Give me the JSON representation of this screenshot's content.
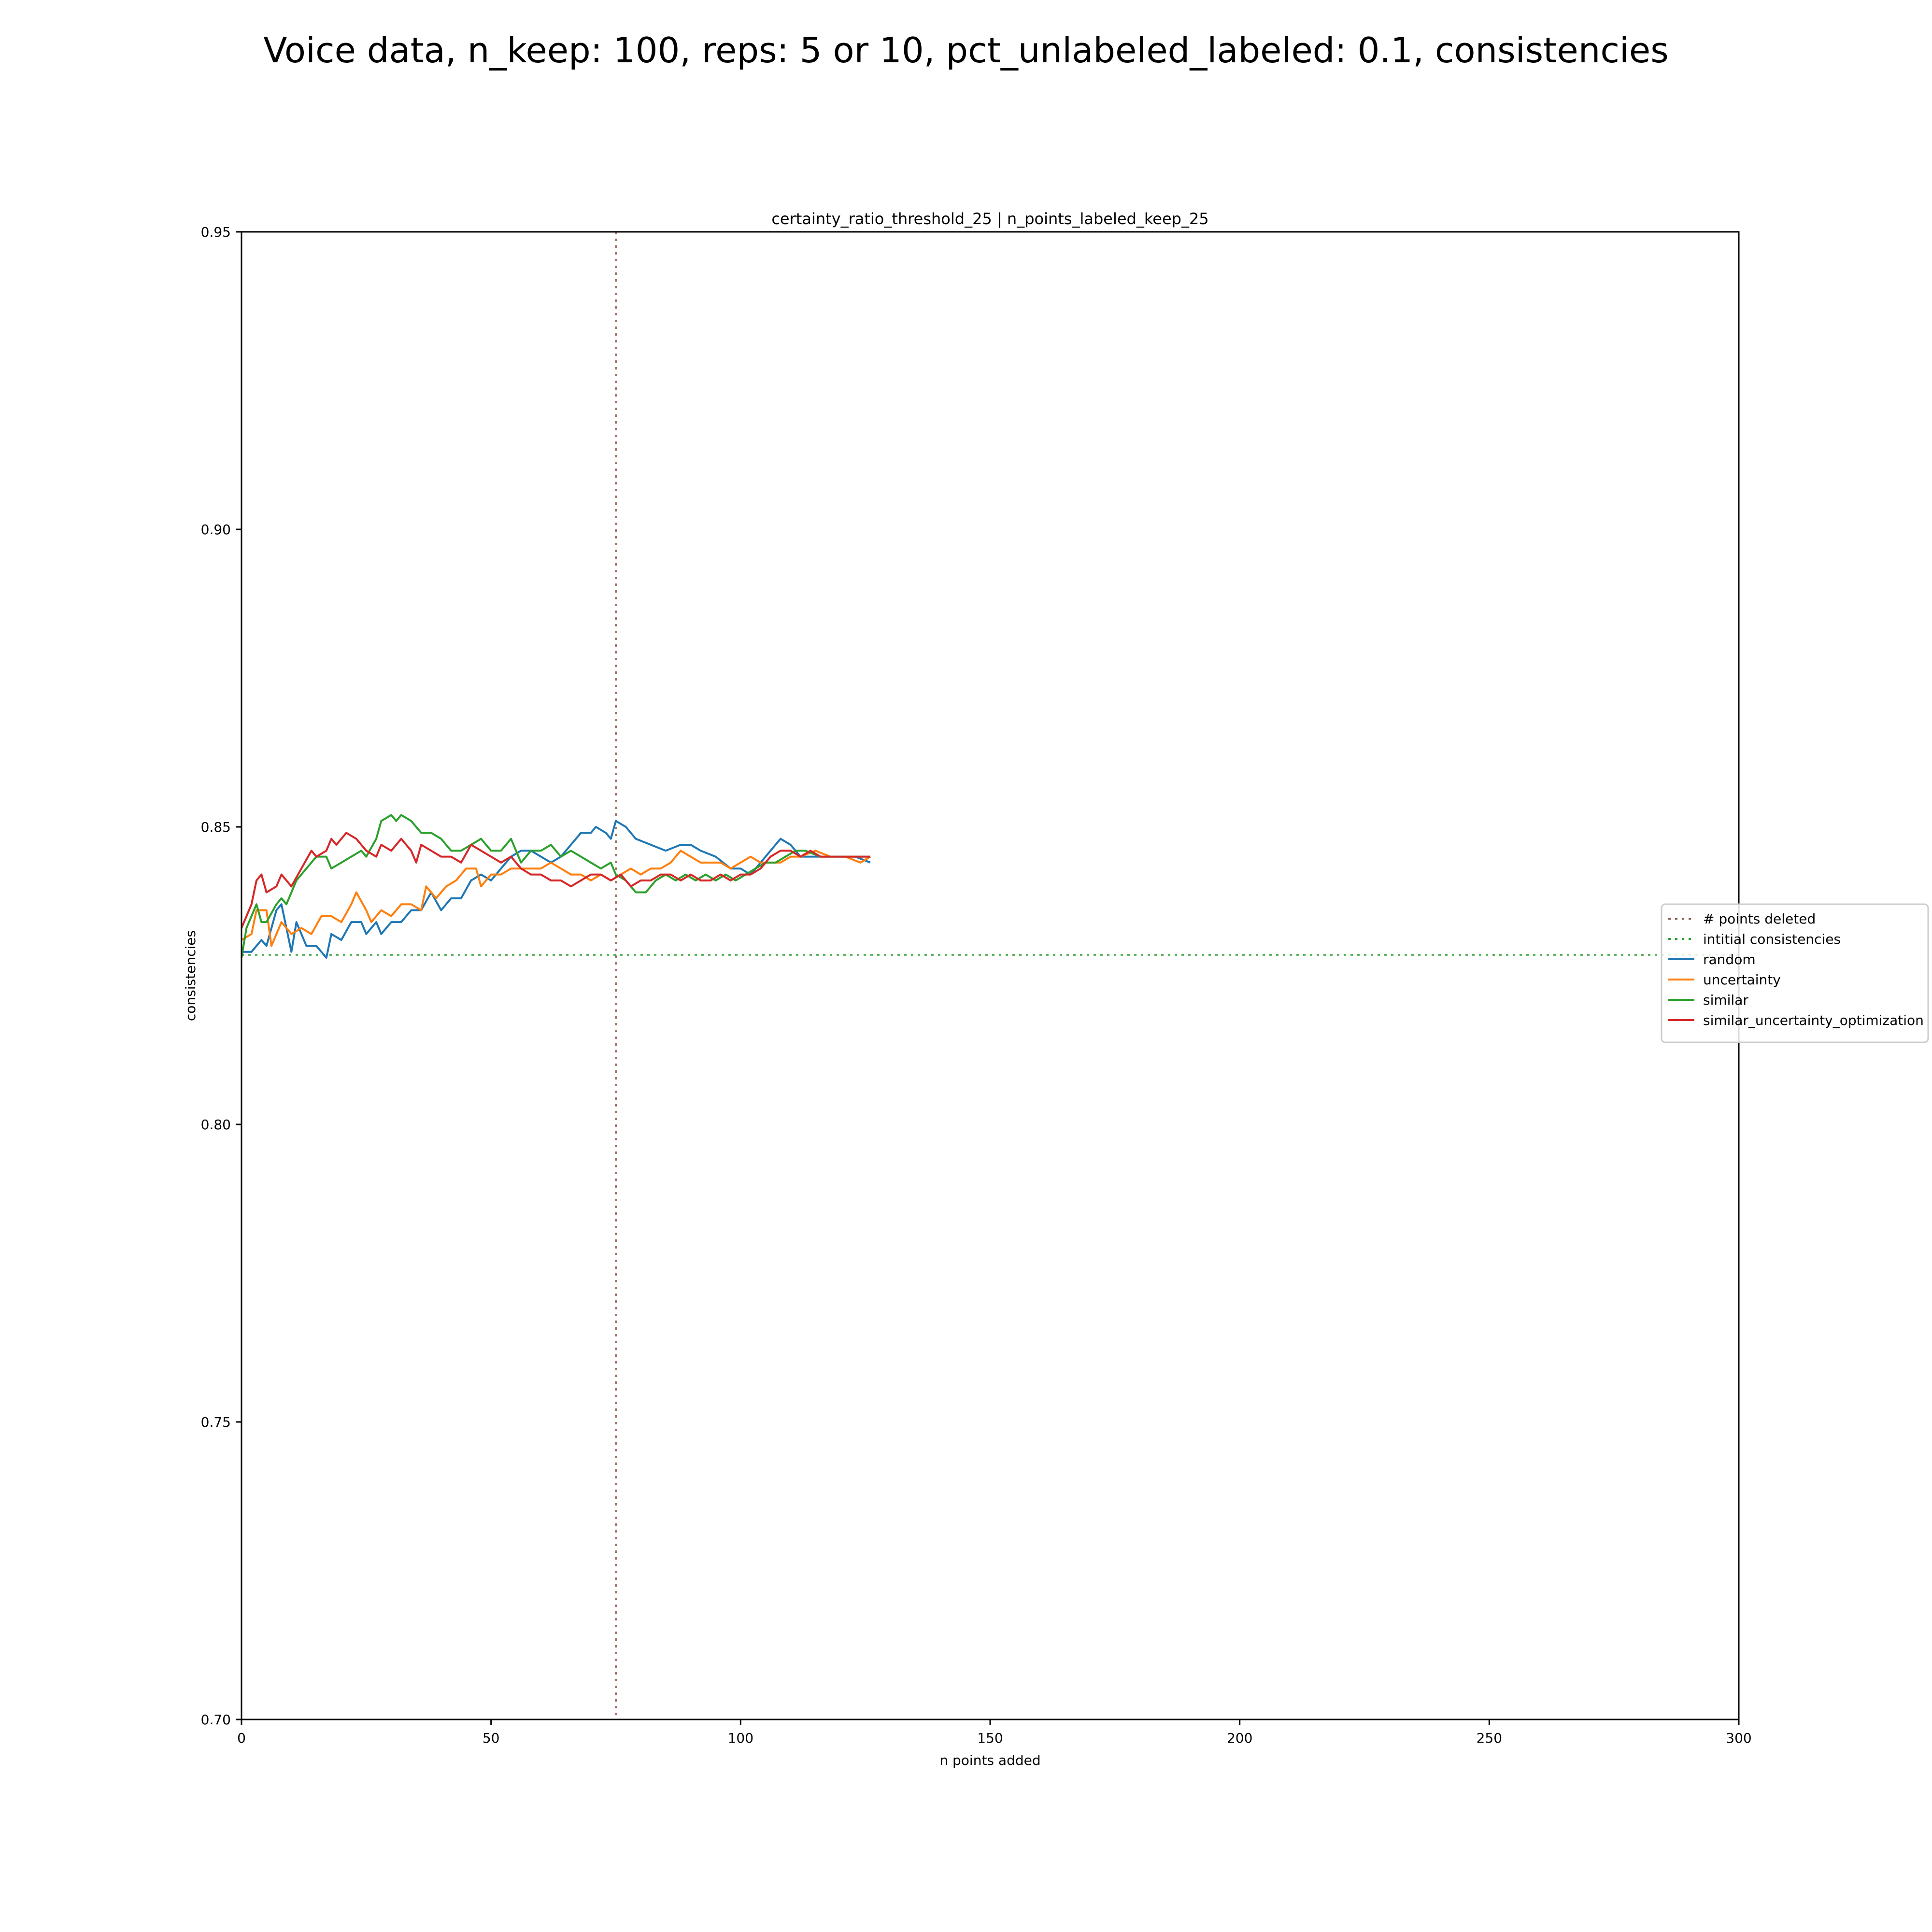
{
  "figure": {
    "suptitle": "Voice data, n_keep: 100, reps: 5 or 10, pct_unlabeled_labeled: 0.1, consistencies"
  },
  "chart_data": {
    "type": "line",
    "title": "certainty_ratio_threshold_25 | n_points_labeled_keep_25",
    "xlabel": "n points added",
    "ylabel": "consistencies",
    "xlim": [
      0,
      300
    ],
    "ylim": [
      0.7,
      0.95
    ],
    "xticks": [
      0,
      50,
      100,
      150,
      200,
      250,
      300
    ],
    "xtick_labels": [
      "0",
      "50",
      "100",
      "150",
      "200",
      "250",
      "300"
    ],
    "yticks": [
      0.7,
      0.75,
      0.8,
      0.85,
      0.9,
      0.95
    ],
    "ytick_labels": [
      "0.70",
      "0.75",
      "0.80",
      "0.85",
      "0.90",
      "0.95"
    ],
    "grid": false,
    "legend_position": "center-right, outside",
    "reference_lines": [
      {
        "name": "# points deleted",
        "orientation": "vertical",
        "x": 75,
        "color": "#8c564b",
        "style": "dotted"
      },
      {
        "name": "intitial consistencies",
        "orientation": "horizontal",
        "y": 0.8285,
        "color": "#2ca02c",
        "style": "dotted"
      }
    ],
    "series": [
      {
        "name": "random",
        "color": "#1f77b4",
        "points": [
          [
            0,
            0.829
          ],
          [
            2,
            0.829
          ],
          [
            4,
            0.831
          ],
          [
            5,
            0.83
          ],
          [
            7,
            0.836
          ],
          [
            8,
            0.837
          ],
          [
            10,
            0.829
          ],
          [
            11,
            0.834
          ],
          [
            13,
            0.83
          ],
          [
            15,
            0.83
          ],
          [
            17,
            0.828
          ],
          [
            18,
            0.832
          ],
          [
            20,
            0.831
          ],
          [
            22,
            0.834
          ],
          [
            24,
            0.834
          ],
          [
            25,
            0.832
          ],
          [
            27,
            0.834
          ],
          [
            28,
            0.832
          ],
          [
            30,
            0.834
          ],
          [
            32,
            0.834
          ],
          [
            34,
            0.836
          ],
          [
            36,
            0.836
          ],
          [
            38,
            0.839
          ],
          [
            40,
            0.836
          ],
          [
            42,
            0.838
          ],
          [
            44,
            0.838
          ],
          [
            46,
            0.841
          ],
          [
            48,
            0.842
          ],
          [
            50,
            0.841
          ],
          [
            52,
            0.843
          ],
          [
            54,
            0.845
          ],
          [
            56,
            0.846
          ],
          [
            58,
            0.846
          ],
          [
            60,
            0.845
          ],
          [
            62,
            0.844
          ],
          [
            64,
            0.845
          ],
          [
            66,
            0.847
          ],
          [
            68,
            0.849
          ],
          [
            70,
            0.849
          ],
          [
            71,
            0.85
          ],
          [
            73,
            0.849
          ],
          [
            74,
            0.848
          ],
          [
            75,
            0.851
          ],
          [
            77,
            0.85
          ],
          [
            79,
            0.848
          ],
          [
            82,
            0.847
          ],
          [
            85,
            0.846
          ],
          [
            88,
            0.847
          ],
          [
            90,
            0.847
          ],
          [
            92,
            0.846
          ],
          [
            95,
            0.845
          ],
          [
            98,
            0.843
          ],
          [
            100,
            0.843
          ],
          [
            102,
            0.842
          ],
          [
            104,
            0.844
          ],
          [
            106,
            0.846
          ],
          [
            108,
            0.848
          ],
          [
            110,
            0.847
          ],
          [
            112,
            0.845
          ],
          [
            115,
            0.845
          ],
          [
            118,
            0.845
          ],
          [
            120,
            0.845
          ],
          [
            123,
            0.845
          ],
          [
            126,
            0.844
          ]
        ]
      },
      {
        "name": "uncertainty",
        "color": "#ff7f0e",
        "points": [
          [
            0,
            0.831
          ],
          [
            2,
            0.832
          ],
          [
            3,
            0.836
          ],
          [
            5,
            0.836
          ],
          [
            6,
            0.83
          ],
          [
            8,
            0.834
          ],
          [
            10,
            0.832
          ],
          [
            12,
            0.833
          ],
          [
            14,
            0.832
          ],
          [
            16,
            0.835
          ],
          [
            18,
            0.835
          ],
          [
            20,
            0.834
          ],
          [
            22,
            0.837
          ],
          [
            23,
            0.839
          ],
          [
            25,
            0.836
          ],
          [
            26,
            0.834
          ],
          [
            28,
            0.836
          ],
          [
            30,
            0.835
          ],
          [
            32,
            0.837
          ],
          [
            34,
            0.837
          ],
          [
            36,
            0.836
          ],
          [
            37,
            0.84
          ],
          [
            39,
            0.838
          ],
          [
            41,
            0.84
          ],
          [
            43,
            0.841
          ],
          [
            45,
            0.843
          ],
          [
            47,
            0.843
          ],
          [
            48,
            0.84
          ],
          [
            50,
            0.842
          ],
          [
            52,
            0.842
          ],
          [
            54,
            0.843
          ],
          [
            56,
            0.843
          ],
          [
            58,
            0.843
          ],
          [
            60,
            0.843
          ],
          [
            62,
            0.844
          ],
          [
            64,
            0.843
          ],
          [
            66,
            0.842
          ],
          [
            68,
            0.842
          ],
          [
            70,
            0.841
          ],
          [
            72,
            0.842
          ],
          [
            74,
            0.841
          ],
          [
            76,
            0.842
          ],
          [
            78,
            0.843
          ],
          [
            80,
            0.842
          ],
          [
            82,
            0.843
          ],
          [
            84,
            0.843
          ],
          [
            86,
            0.844
          ],
          [
            88,
            0.846
          ],
          [
            90,
            0.845
          ],
          [
            92,
            0.844
          ],
          [
            94,
            0.844
          ],
          [
            96,
            0.844
          ],
          [
            98,
            0.843
          ],
          [
            100,
            0.844
          ],
          [
            102,
            0.845
          ],
          [
            104,
            0.844
          ],
          [
            106,
            0.844
          ],
          [
            108,
            0.844
          ],
          [
            110,
            0.845
          ],
          [
            112,
            0.845
          ],
          [
            115,
            0.846
          ],
          [
            118,
            0.845
          ],
          [
            121,
            0.845
          ],
          [
            124,
            0.844
          ],
          [
            126,
            0.845
          ]
        ]
      },
      {
        "name": "similar",
        "color": "#2ca02c",
        "points": [
          [
            0,
            0.828
          ],
          [
            1,
            0.833
          ],
          [
            3,
            0.837
          ],
          [
            4,
            0.834
          ],
          [
            5,
            0.834
          ],
          [
            7,
            0.837
          ],
          [
            8,
            0.838
          ],
          [
            9,
            0.837
          ],
          [
            11,
            0.841
          ],
          [
            13,
            0.843
          ],
          [
            15,
            0.845
          ],
          [
            17,
            0.845
          ],
          [
            18,
            0.843
          ],
          [
            20,
            0.844
          ],
          [
            22,
            0.845
          ],
          [
            24,
            0.846
          ],
          [
            25,
            0.845
          ],
          [
            27,
            0.848
          ],
          [
            28,
            0.851
          ],
          [
            30,
            0.852
          ],
          [
            31,
            0.851
          ],
          [
            32,
            0.852
          ],
          [
            34,
            0.851
          ],
          [
            36,
            0.849
          ],
          [
            38,
            0.849
          ],
          [
            40,
            0.848
          ],
          [
            42,
            0.846
          ],
          [
            44,
            0.846
          ],
          [
            46,
            0.847
          ],
          [
            48,
            0.848
          ],
          [
            50,
            0.846
          ],
          [
            52,
            0.846
          ],
          [
            54,
            0.848
          ],
          [
            56,
            0.844
          ],
          [
            58,
            0.846
          ],
          [
            60,
            0.846
          ],
          [
            62,
            0.847
          ],
          [
            64,
            0.845
          ],
          [
            66,
            0.846
          ],
          [
            68,
            0.845
          ],
          [
            70,
            0.844
          ],
          [
            72,
            0.843
          ],
          [
            74,
            0.844
          ],
          [
            75,
            0.842
          ],
          [
            77,
            0.841
          ],
          [
            79,
            0.839
          ],
          [
            81,
            0.839
          ],
          [
            83,
            0.841
          ],
          [
            85,
            0.842
          ],
          [
            87,
            0.841
          ],
          [
            89,
            0.842
          ],
          [
            91,
            0.841
          ],
          [
            93,
            0.842
          ],
          [
            95,
            0.841
          ],
          [
            97,
            0.842
          ],
          [
            99,
            0.841
          ],
          [
            101,
            0.842
          ],
          [
            103,
            0.843
          ],
          [
            105,
            0.844
          ],
          [
            107,
            0.844
          ],
          [
            109,
            0.845
          ],
          [
            111,
            0.846
          ],
          [
            113,
            0.846
          ],
          [
            116,
            0.845
          ],
          [
            119,
            0.845
          ],
          [
            122,
            0.845
          ],
          [
            126,
            0.845
          ]
        ]
      },
      {
        "name": "similar_uncertainty_optimization",
        "color": "#d62728",
        "points": [
          [
            0,
            0.833
          ],
          [
            2,
            0.837
          ],
          [
            3,
            0.841
          ],
          [
            4,
            0.842
          ],
          [
            5,
            0.839
          ],
          [
            7,
            0.84
          ],
          [
            8,
            0.842
          ],
          [
            10,
            0.84
          ],
          [
            12,
            0.843
          ],
          [
            14,
            0.846
          ],
          [
            15,
            0.845
          ],
          [
            17,
            0.846
          ],
          [
            18,
            0.848
          ],
          [
            19,
            0.847
          ],
          [
            21,
            0.849
          ],
          [
            23,
            0.848
          ],
          [
            25,
            0.846
          ],
          [
            27,
            0.845
          ],
          [
            28,
            0.847
          ],
          [
            30,
            0.846
          ],
          [
            32,
            0.848
          ],
          [
            34,
            0.846
          ],
          [
            35,
            0.844
          ],
          [
            36,
            0.847
          ],
          [
            38,
            0.846
          ],
          [
            40,
            0.845
          ],
          [
            42,
            0.845
          ],
          [
            44,
            0.844
          ],
          [
            46,
            0.847
          ],
          [
            48,
            0.846
          ],
          [
            50,
            0.845
          ],
          [
            52,
            0.844
          ],
          [
            54,
            0.845
          ],
          [
            56,
            0.843
          ],
          [
            58,
            0.842
          ],
          [
            60,
            0.842
          ],
          [
            62,
            0.841
          ],
          [
            64,
            0.841
          ],
          [
            66,
            0.84
          ],
          [
            68,
            0.841
          ],
          [
            70,
            0.842
          ],
          [
            72,
            0.842
          ],
          [
            74,
            0.841
          ],
          [
            76,
            0.842
          ],
          [
            78,
            0.84
          ],
          [
            80,
            0.841
          ],
          [
            82,
            0.841
          ],
          [
            84,
            0.842
          ],
          [
            86,
            0.842
          ],
          [
            88,
            0.841
          ],
          [
            90,
            0.842
          ],
          [
            92,
            0.841
          ],
          [
            94,
            0.841
          ],
          [
            96,
            0.842
          ],
          [
            98,
            0.841
          ],
          [
            100,
            0.842
          ],
          [
            102,
            0.842
          ],
          [
            104,
            0.843
          ],
          [
            106,
            0.845
          ],
          [
            108,
            0.846
          ],
          [
            110,
            0.846
          ],
          [
            112,
            0.845
          ],
          [
            114,
            0.846
          ],
          [
            116,
            0.845
          ],
          [
            118,
            0.845
          ],
          [
            121,
            0.845
          ],
          [
            124,
            0.845
          ],
          [
            126,
            0.845
          ]
        ]
      }
    ]
  }
}
